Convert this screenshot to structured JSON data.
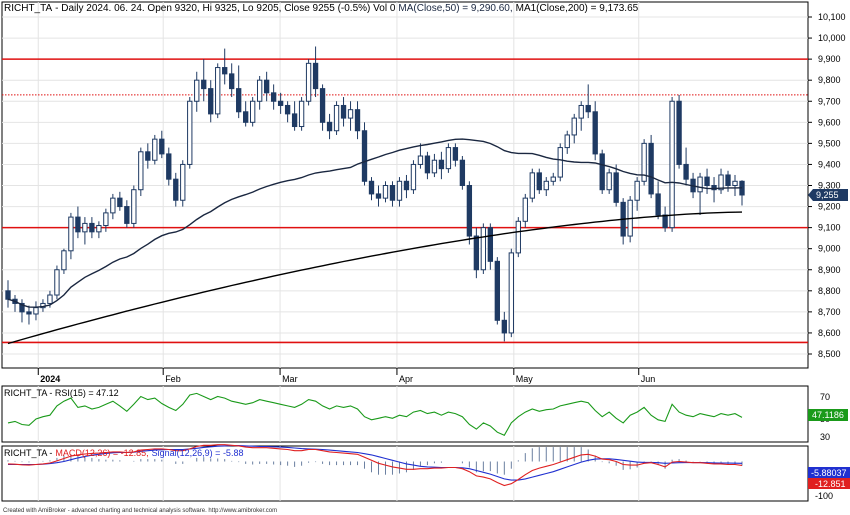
{
  "header": {
    "symbol": "RICHT_TA",
    "info": "- Daily 2024. 06. 24. Open 9320, Hi 9325, Lo 9205, Close 9255 (-0.5%) Vol 0",
    "ma50_text": "MA(Close,50) = 9,290.60,",
    "ma200_text": "MA1(Close,200) = 9,173.65"
  },
  "rsi_panel": {
    "label": "RICHT_TA - RSI(15) = 47.12",
    "value_tag": "47.1186",
    "ticks": [
      "70",
      "50",
      "30"
    ]
  },
  "macd_panel": {
    "prefix": "RICHT_TA -",
    "macd_text": "MACD(12,26) = -12.85,",
    "signal_text": "Signal(12,26,9) = -5.88",
    "signal_tag": "-5.88037",
    "macd_tag": "-12.851",
    "ticks": [
      "0",
      "-100"
    ]
  },
  "footer": {
    "credit": "Created with AmiBroker - advanced charting and technical analysis software. http://www.amibroker.com"
  },
  "colors": {
    "candle": "#1f3a63",
    "ma50": "#1a2740",
    "ma200": "#000000",
    "hline": "#e01010",
    "rsi": "#1a9a1a",
    "macd": "#e02020",
    "signal": "#2030d0",
    "price_tag": "#1f3a63",
    "histogram": "#6a7fa0"
  },
  "chart_data": {
    "type": "candlestick",
    "x_labels": [
      "2024",
      "Feb",
      "Mar",
      "Apr",
      "May",
      "Jun"
    ],
    "y_ticks": [
      8500,
      8600,
      8700,
      8800,
      8900,
      9000,
      9100,
      9200,
      9300,
      9400,
      9500,
      9600,
      9700,
      9800,
      9900,
      10000,
      10100
    ],
    "ylim": [
      8460,
      10130
    ],
    "last_close": 9255,
    "last_price_label": "9,255",
    "horizontal_lines": [
      {
        "value": 9900,
        "style": "solid"
      },
      {
        "value": 9730,
        "style": "dotted"
      },
      {
        "value": 9100,
        "style": "solid"
      },
      {
        "value": 8555,
        "style": "solid"
      }
    ],
    "candles": [
      [
        8800,
        8850,
        8720,
        8760
      ],
      [
        8760,
        8780,
        8700,
        8740
      ],
      [
        8740,
        8760,
        8650,
        8700
      ],
      [
        8700,
        8730,
        8640,
        8690
      ],
      [
        8690,
        8750,
        8660,
        8720
      ],
      [
        8720,
        8760,
        8700,
        8740
      ],
      [
        8740,
        8800,
        8720,
        8780
      ],
      [
        8780,
        8920,
        8760,
        8900
      ],
      [
        8900,
        9000,
        8880,
        8990
      ],
      [
        8990,
        9170,
        8950,
        9150
      ],
      [
        9150,
        9200,
        9050,
        9080
      ],
      [
        9080,
        9150,
        9020,
        9120
      ],
      [
        9120,
        9150,
        9050,
        9080
      ],
      [
        9080,
        9130,
        9050,
        9110
      ],
      [
        9110,
        9190,
        9080,
        9170
      ],
      [
        9170,
        9260,
        9140,
        9240
      ],
      [
        9240,
        9270,
        9180,
        9200
      ],
      [
        9200,
        9230,
        9100,
        9120
      ],
      [
        9120,
        9300,
        9100,
        9280
      ],
      [
        9280,
        9480,
        9250,
        9460
      ],
      [
        9460,
        9500,
        9380,
        9420
      ],
      [
        9420,
        9540,
        9400,
        9520
      ],
      [
        9520,
        9560,
        9430,
        9450
      ],
      [
        9450,
        9480,
        9300,
        9330
      ],
      [
        9330,
        9360,
        9200,
        9230
      ],
      [
        9230,
        9420,
        9200,
        9400
      ],
      [
        9400,
        9720,
        9380,
        9700
      ],
      [
        9700,
        9840,
        9650,
        9800
      ],
      [
        9800,
        9900,
        9700,
        9760
      ],
      [
        9760,
        9800,
        9600,
        9640
      ],
      [
        9640,
        9880,
        9620,
        9860
      ],
      [
        9860,
        9950,
        9780,
        9830
      ],
      [
        9830,
        9880,
        9720,
        9760
      ],
      [
        9760,
        9870,
        9620,
        9650
      ],
      [
        9650,
        9700,
        9580,
        9600
      ],
      [
        9600,
        9720,
        9580,
        9700
      ],
      [
        9700,
        9820,
        9660,
        9800
      ],
      [
        9800,
        9840,
        9700,
        9740
      ],
      [
        9740,
        9780,
        9660,
        9700
      ],
      [
        9700,
        9740,
        9640,
        9680
      ],
      [
        9680,
        9700,
        9600,
        9640
      ],
      [
        9640,
        9700,
        9560,
        9580
      ],
      [
        9580,
        9720,
        9560,
        9700
      ],
      [
        9700,
        9900,
        9680,
        9880
      ],
      [
        9880,
        9960,
        9720,
        9760
      ],
      [
        9760,
        9780,
        9560,
        9600
      ],
      [
        9600,
        9640,
        9520,
        9560
      ],
      [
        9560,
        9700,
        9540,
        9680
      ],
      [
        9680,
        9720,
        9580,
        9620
      ],
      [
        9620,
        9700,
        9560,
        9660
      ],
      [
        9660,
        9700,
        9520,
        9560
      ],
      [
        9560,
        9600,
        9300,
        9320
      ],
      [
        9320,
        9340,
        9230,
        9260
      ],
      [
        9260,
        9300,
        9200,
        9240
      ],
      [
        9240,
        9320,
        9220,
        9300
      ],
      [
        9300,
        9320,
        9200,
        9230
      ],
      [
        9230,
        9340,
        9200,
        9320
      ],
      [
        9320,
        9350,
        9240,
        9280
      ],
      [
        9280,
        9420,
        9260,
        9400
      ],
      [
        9400,
        9500,
        9380,
        9440
      ],
      [
        9440,
        9460,
        9330,
        9360
      ],
      [
        9360,
        9450,
        9340,
        9420
      ],
      [
        9420,
        9460,
        9330,
        9380
      ],
      [
        9380,
        9500,
        9360,
        9480
      ],
      [
        9480,
        9500,
        9390,
        9420
      ],
      [
        9420,
        9440,
        9280,
        9300
      ],
      [
        9300,
        9320,
        9020,
        9060
      ],
      [
        9060,
        9100,
        8860,
        8900
      ],
      [
        8900,
        9120,
        8880,
        9100
      ],
      [
        9100,
        9120,
        8900,
        8940
      ],
      [
        8940,
        8960,
        8640,
        8660
      ],
      [
        8660,
        8700,
        8560,
        8600
      ],
      [
        8600,
        9000,
        8580,
        8980
      ],
      [
        8980,
        9150,
        8960,
        9130
      ],
      [
        9130,
        9260,
        9100,
        9240
      ],
      [
        9240,
        9380,
        9220,
        9360
      ],
      [
        9360,
        9380,
        9260,
        9280
      ],
      [
        9280,
        9340,
        9250,
        9320
      ],
      [
        9320,
        9360,
        9300,
        9340
      ],
      [
        9340,
        9500,
        9320,
        9480
      ],
      [
        9480,
        9560,
        9450,
        9540
      ],
      [
        9540,
        9640,
        9500,
        9620
      ],
      [
        9620,
        9700,
        9560,
        9680
      ],
      [
        9680,
        9780,
        9620,
        9650
      ],
      [
        9650,
        9700,
        9420,
        9450
      ],
      [
        9450,
        9470,
        9260,
        9280
      ],
      [
        9280,
        9380,
        9260,
        9360
      ],
      [
        9360,
        9400,
        9200,
        9220
      ],
      [
        9220,
        9240,
        9020,
        9060
      ],
      [
        9060,
        9250,
        9030,
        9230
      ],
      [
        9230,
        9340,
        9180,
        9320
      ],
      [
        9320,
        9520,
        9300,
        9500
      ],
      [
        9500,
        9540,
        9240,
        9260
      ],
      [
        9260,
        9320,
        9140,
        9160
      ],
      [
        9160,
        9200,
        9080,
        9100
      ],
      [
        9100,
        9720,
        9080,
        9700
      ],
      [
        9700,
        9730,
        9380,
        9400
      ],
      [
        9400,
        9480,
        9300,
        9330
      ],
      [
        9330,
        9360,
        9240,
        9270
      ],
      [
        9270,
        9360,
        9160,
        9340
      ],
      [
        9340,
        9380,
        9260,
        9300
      ],
      [
        9300,
        9340,
        9220,
        9280
      ],
      [
        9280,
        9380,
        9260,
        9350
      ],
      [
        9350,
        9370,
        9270,
        9300
      ],
      [
        9300,
        9350,
        9250,
        9320
      ],
      [
        9320,
        9325,
        9205,
        9255
      ]
    ],
    "rsi_ylim": [
      18,
      85
    ],
    "rsi": [
      40,
      42,
      38,
      37,
      45,
      48,
      50,
      62,
      68,
      72,
      60,
      62,
      58,
      60,
      64,
      68,
      62,
      55,
      64,
      74,
      70,
      72,
      65,
      60,
      56,
      64,
      76,
      78,
      74,
      70,
      74,
      72,
      68,
      66,
      64,
      66,
      70,
      68,
      66,
      64,
      62,
      60,
      64,
      70,
      68,
      62,
      58,
      62,
      60,
      62,
      58,
      48,
      44,
      46,
      48,
      46,
      50,
      48,
      54,
      56,
      52,
      54,
      50,
      54,
      52,
      48,
      38,
      32,
      40,
      36,
      28,
      24,
      40,
      48,
      54,
      58,
      55,
      57,
      58,
      62,
      64,
      66,
      68,
      66,
      56,
      48,
      54,
      46,
      40,
      50,
      54,
      60,
      50,
      44,
      42,
      64,
      54,
      50,
      48,
      52,
      50,
      48,
      52,
      50,
      52,
      47.12
    ],
    "macd_ylim": [
      -125,
      45
    ],
    "macd": [
      -8,
      -9,
      -11,
      -12,
      -10,
      -8,
      -5,
      2,
      10,
      18,
      22,
      25,
      27,
      28,
      30,
      32,
      32,
      30,
      32,
      38,
      40,
      42,
      42,
      40,
      36,
      36,
      42,
      50,
      54,
      54,
      56,
      56,
      54,
      52,
      48,
      46,
      46,
      46,
      44,
      42,
      40,
      36,
      36,
      40,
      40,
      36,
      32,
      30,
      28,
      26,
      24,
      14,
      4,
      -6,
      -12,
      -18,
      -22,
      -26,
      -26,
      -24,
      -24,
      -22,
      -22,
      -20,
      -20,
      -24,
      -34,
      -48,
      -52,
      -58,
      -70,
      -80,
      -74,
      -60,
      -44,
      -30,
      -22,
      -16,
      -10,
      -2,
      6,
      14,
      22,
      24,
      18,
      8,
      6,
      0,
      -10,
      -12,
      -12,
      -6,
      -4,
      -10,
      -18,
      -2,
      0,
      -2,
      -4,
      -4,
      -6,
      -8,
      -8,
      -10,
      -10,
      -12.85
    ],
    "signal": [
      -10,
      -10,
      -10,
      -10.5,
      -10,
      -9,
      -7,
      -4,
      0,
      6,
      12,
      17,
      21,
      24,
      27,
      29,
      30,
      30,
      31,
      34,
      36,
      38,
      39,
      40,
      40,
      40,
      42,
      44,
      47,
      49,
      51,
      52,
      53,
      53,
      52,
      51,
      50,
      50,
      49,
      48,
      47,
      45,
      43,
      42,
      41,
      40,
      38,
      36,
      34,
      32,
      30,
      26,
      22,
      16,
      10,
      4,
      -2,
      -8,
      -12,
      -16,
      -18,
      -19,
      -20,
      -20,
      -20,
      -21,
      -24,
      -30,
      -36,
      -42,
      -50,
      -58,
      -62,
      -62,
      -58,
      -52,
      -46,
      -40,
      -34,
      -26,
      -18,
      -10,
      -2,
      4,
      8,
      9,
      9,
      7,
      4,
      1,
      -2,
      -3,
      -3,
      -4,
      -6,
      -5,
      -4,
      -3.5,
      -3.5,
      -3.5,
      -4,
      -4.5,
      -5,
      -5.5,
      -5.7,
      -5.88
    ]
  }
}
